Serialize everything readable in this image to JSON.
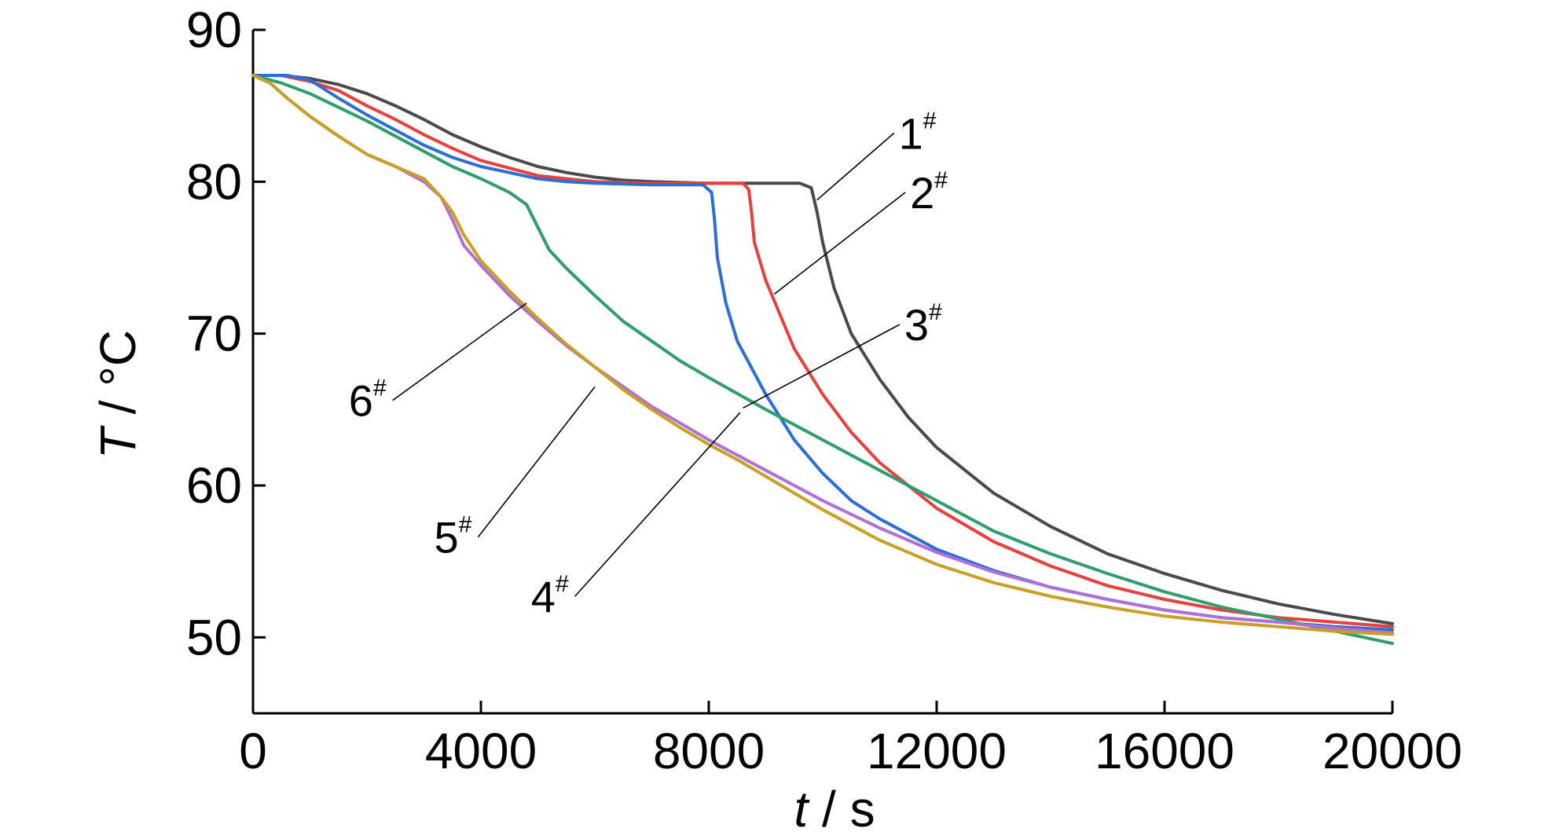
{
  "chart_data": {
    "type": "line",
    "xlabel": {
      "var": "t",
      "sep": " / ",
      "unit": "s"
    },
    "ylabel": {
      "var": "T",
      "sep": " / ",
      "unit": "°C"
    },
    "xlim": [
      0,
      20000
    ],
    "ylim": [
      45,
      90
    ],
    "x_ticks": [
      0,
      4000,
      8000,
      12000,
      16000,
      20000
    ],
    "y_ticks": [
      50,
      60,
      70,
      80,
      90
    ],
    "grid": false,
    "legend": "direct labels with leader lines",
    "series": [
      {
        "name": "1#",
        "color": "#4a4a4a",
        "points": [
          [
            0,
            87
          ],
          [
            500,
            87
          ],
          [
            1000,
            86.8
          ],
          [
            1500,
            86.4
          ],
          [
            2000,
            85.8
          ],
          [
            2500,
            85
          ],
          [
            3000,
            84.1
          ],
          [
            3500,
            83.1
          ],
          [
            4000,
            82.3
          ],
          [
            4500,
            81.6
          ],
          [
            5000,
            81
          ],
          [
            5500,
            80.6
          ],
          [
            6000,
            80.3
          ],
          [
            6500,
            80.1
          ],
          [
            7000,
            80
          ],
          [
            8000,
            79.9
          ],
          [
            9000,
            79.9
          ],
          [
            9600,
            79.9
          ],
          [
            9800,
            79.6
          ],
          [
            9900,
            78
          ],
          [
            10000,
            76
          ],
          [
            10200,
            73
          ],
          [
            10500,
            70
          ],
          [
            11000,
            67
          ],
          [
            11500,
            64.5
          ],
          [
            12000,
            62.5
          ],
          [
            13000,
            59.5
          ],
          [
            14000,
            57.3
          ],
          [
            15000,
            55.5
          ],
          [
            16000,
            54.2
          ],
          [
            17000,
            53.1
          ],
          [
            18000,
            52.2
          ],
          [
            19000,
            51.5
          ],
          [
            20000,
            50.9
          ]
        ]
      },
      {
        "name": "2#",
        "color": "#e8413c",
        "points": [
          [
            0,
            87
          ],
          [
            500,
            87
          ],
          [
            1000,
            86.6
          ],
          [
            1500,
            86
          ],
          [
            2000,
            85
          ],
          [
            2500,
            84.1
          ],
          [
            3000,
            83.1
          ],
          [
            3500,
            82.2
          ],
          [
            4000,
            81.4
          ],
          [
            4500,
            80.9
          ],
          [
            5000,
            80.4
          ],
          [
            5500,
            80.2
          ],
          [
            6000,
            80
          ],
          [
            7000,
            79.9
          ],
          [
            8000,
            79.9
          ],
          [
            8600,
            79.9
          ],
          [
            8700,
            79.5
          ],
          [
            8750,
            78
          ],
          [
            8800,
            76
          ],
          [
            9000,
            73.5
          ],
          [
            9500,
            69
          ],
          [
            10000,
            66
          ],
          [
            10500,
            63.5
          ],
          [
            11000,
            61.5
          ],
          [
            12000,
            58.5
          ],
          [
            13000,
            56.3
          ],
          [
            14000,
            54.7
          ],
          [
            15000,
            53.4
          ],
          [
            16000,
            52.5
          ],
          [
            17000,
            51.8
          ],
          [
            18000,
            51.3
          ],
          [
            19000,
            51
          ],
          [
            20000,
            50.7
          ]
        ]
      },
      {
        "name": "3#",
        "color": "#2b6fd6",
        "points": [
          [
            0,
            87
          ],
          [
            600,
            87
          ],
          [
            1000,
            86.7
          ],
          [
            1500,
            85.5
          ],
          [
            2000,
            84.4
          ],
          [
            2500,
            83.4
          ],
          [
            3000,
            82.4
          ],
          [
            3500,
            81.6
          ],
          [
            4000,
            81
          ],
          [
            4500,
            80.6
          ],
          [
            5000,
            80.2
          ],
          [
            5500,
            80
          ],
          [
            6000,
            79.9
          ],
          [
            7000,
            79.8
          ],
          [
            7900,
            79.8
          ],
          [
            8050,
            79.3
          ],
          [
            8100,
            77.5
          ],
          [
            8150,
            75
          ],
          [
            8300,
            72
          ],
          [
            8500,
            69.5
          ],
          [
            9000,
            66
          ],
          [
            9500,
            63
          ],
          [
            10000,
            60.8
          ],
          [
            10500,
            59
          ],
          [
            11000,
            57.8
          ],
          [
            12000,
            55.8
          ],
          [
            13000,
            54.4
          ],
          [
            14000,
            53.3
          ],
          [
            15000,
            52.5
          ],
          [
            16000,
            51.8
          ],
          [
            17000,
            51.3
          ],
          [
            18000,
            51
          ],
          [
            19000,
            50.7
          ],
          [
            20000,
            50.5
          ]
        ]
      },
      {
        "name": "4#",
        "color": "#2f9e6c",
        "points": [
          [
            0,
            87
          ],
          [
            500,
            86.5
          ],
          [
            1000,
            85.8
          ],
          [
            1500,
            84.9
          ],
          [
            2000,
            84
          ],
          [
            2500,
            83
          ],
          [
            3000,
            82
          ],
          [
            3500,
            81
          ],
          [
            4000,
            80.2
          ],
          [
            4500,
            79.3
          ],
          [
            4800,
            78.5
          ],
          [
            5000,
            77
          ],
          [
            5200,
            75.5
          ],
          [
            5500,
            74.3
          ],
          [
            6000,
            72.5
          ],
          [
            6500,
            70.8
          ],
          [
            7000,
            69.5
          ],
          [
            7500,
            68.2
          ],
          [
            8000,
            67.1
          ],
          [
            9000,
            65
          ],
          [
            10000,
            63
          ],
          [
            11000,
            61
          ],
          [
            12000,
            59
          ],
          [
            13000,
            57
          ],
          [
            14000,
            55.5
          ],
          [
            15000,
            54.2
          ],
          [
            16000,
            53
          ],
          [
            17000,
            52
          ],
          [
            18000,
            51.2
          ],
          [
            19000,
            50.4
          ],
          [
            20000,
            49.6
          ]
        ]
      },
      {
        "name": "5#",
        "color": "#b070d8",
        "points": [
          [
            0,
            87
          ],
          [
            300,
            86.5
          ],
          [
            600,
            85.5
          ],
          [
            1000,
            84.3
          ],
          [
            1500,
            83
          ],
          [
            2000,
            81.8
          ],
          [
            2500,
            81
          ],
          [
            3000,
            80
          ],
          [
            3300,
            79
          ],
          [
            3500,
            77.5
          ],
          [
            3700,
            75.8
          ],
          [
            4000,
            74.5
          ],
          [
            4500,
            72.5
          ],
          [
            5000,
            70.8
          ],
          [
            5500,
            69.2
          ],
          [
            6000,
            67.8
          ],
          [
            6500,
            66.5
          ],
          [
            7000,
            65.2
          ],
          [
            7500,
            64.1
          ],
          [
            8000,
            63
          ],
          [
            8500,
            62
          ],
          [
            9000,
            61
          ],
          [
            9500,
            60
          ],
          [
            10000,
            59
          ],
          [
            11000,
            57.2
          ],
          [
            12000,
            55.6
          ],
          [
            13000,
            54.3
          ],
          [
            14000,
            53.3
          ],
          [
            15000,
            52.5
          ],
          [
            16000,
            51.8
          ],
          [
            17000,
            51.3
          ],
          [
            18000,
            51
          ],
          [
            19000,
            50.6
          ],
          [
            20000,
            50.3
          ]
        ]
      },
      {
        "name": "6#",
        "color": "#c9a023",
        "points": [
          [
            0,
            87
          ],
          [
            300,
            86.5
          ],
          [
            600,
            85.5
          ],
          [
            1000,
            84.3
          ],
          [
            1500,
            83
          ],
          [
            2000,
            81.8
          ],
          [
            2500,
            81
          ],
          [
            3000,
            80.2
          ],
          [
            3300,
            79
          ],
          [
            3500,
            78
          ],
          [
            3700,
            76.5
          ],
          [
            4000,
            74.8
          ],
          [
            4500,
            72.8
          ],
          [
            5000,
            71
          ],
          [
            5500,
            69.3
          ],
          [
            6000,
            67.8
          ],
          [
            6500,
            66.3
          ],
          [
            7000,
            65
          ],
          [
            7500,
            63.8
          ],
          [
            8000,
            62.7
          ],
          [
            8500,
            61.7
          ],
          [
            9000,
            60.6
          ],
          [
            9500,
            59.5
          ],
          [
            10000,
            58.4
          ],
          [
            10500,
            57.4
          ],
          [
            11000,
            56.4
          ],
          [
            12000,
            54.8
          ],
          [
            13000,
            53.6
          ],
          [
            14000,
            52.7
          ],
          [
            15000,
            52
          ],
          [
            16000,
            51.4
          ],
          [
            17000,
            51
          ],
          [
            18000,
            50.7
          ],
          [
            19000,
            50.4
          ],
          [
            20000,
            50.2
          ]
        ]
      }
    ],
    "labels": [
      {
        "text": "1",
        "sup": "#",
        "series": "1#",
        "anchor": [
          11250,
          83.2
        ],
        "target": [
          9900,
          78.8
        ]
      },
      {
        "text": "2",
        "sup": "#",
        "series": "2#",
        "anchor": [
          11450,
          79.3
        ],
        "target": [
          9150,
          72.6
        ]
      },
      {
        "text": "3",
        "sup": "#",
        "series": "3#",
        "anchor": [
          11350,
          70.6
        ],
        "target": [
          8600,
          65.1
        ]
      },
      {
        "text": "6",
        "sup": "#",
        "series": "6#",
        "anchor": [
          2450,
          65.6
        ],
        "target": [
          4800,
          72.0
        ]
      },
      {
        "text": "5",
        "sup": "#",
        "series": "5#",
        "anchor": [
          3950,
          56.6
        ],
        "target": [
          6000,
          66.5
        ]
      },
      {
        "text": "4",
        "sup": "#",
        "series": "4#",
        "anchor": [
          5650,
          52.7
        ],
        "target": [
          8550,
          64.8
        ]
      }
    ]
  }
}
